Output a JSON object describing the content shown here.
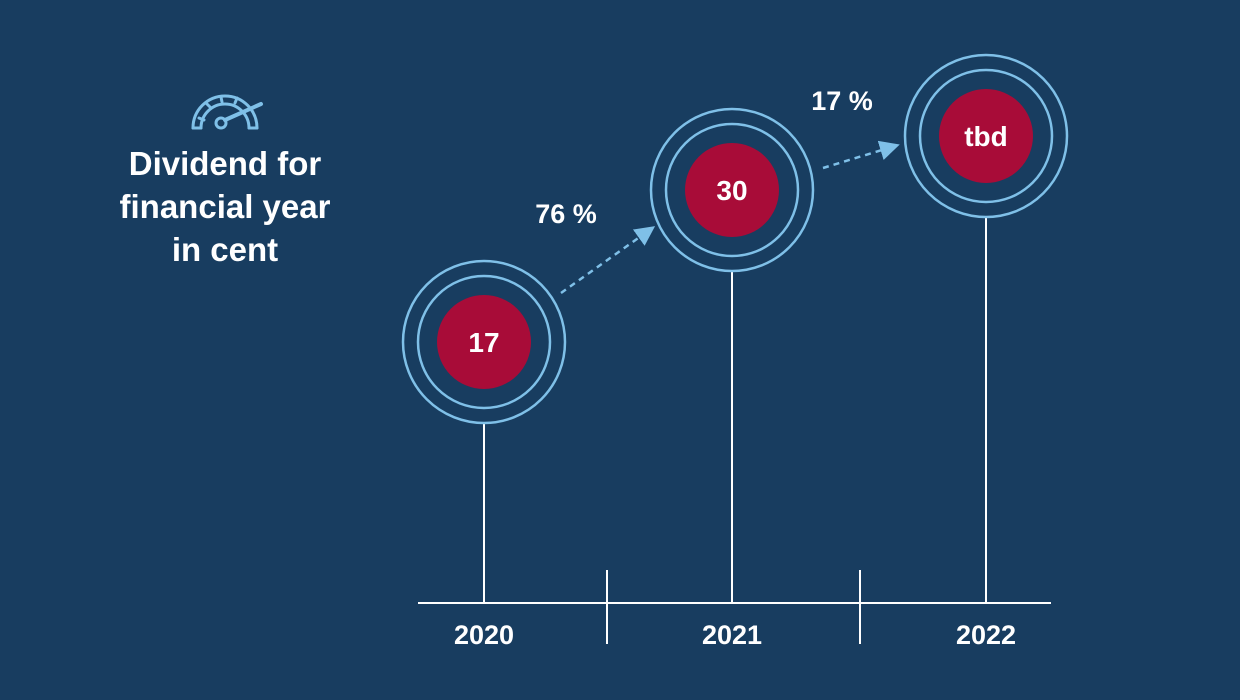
{
  "title": {
    "icon": "speedometer-icon",
    "lines": [
      "Dividend for",
      "financial year",
      "in cent"
    ]
  },
  "colors": {
    "background": "#183d60",
    "circle_fill": "#a80c38",
    "ring": "#7fc0e8",
    "arrow": "#7fc0e8",
    "axis": "#ffffff",
    "text": "#ffffff"
  },
  "chart_data": {
    "type": "lollipop",
    "title": "Dividend for financial year in cent",
    "categories": [
      "2020",
      "2021",
      "2022"
    ],
    "values": [
      17,
      30,
      null
    ],
    "value_labels": [
      "17",
      "30",
      "tbd"
    ],
    "growth": [
      {
        "from": "2020",
        "to": "2021",
        "label": "76 %"
      },
      {
        "from": "2021",
        "to": "2022",
        "label": "17 %"
      }
    ],
    "grid": false
  }
}
